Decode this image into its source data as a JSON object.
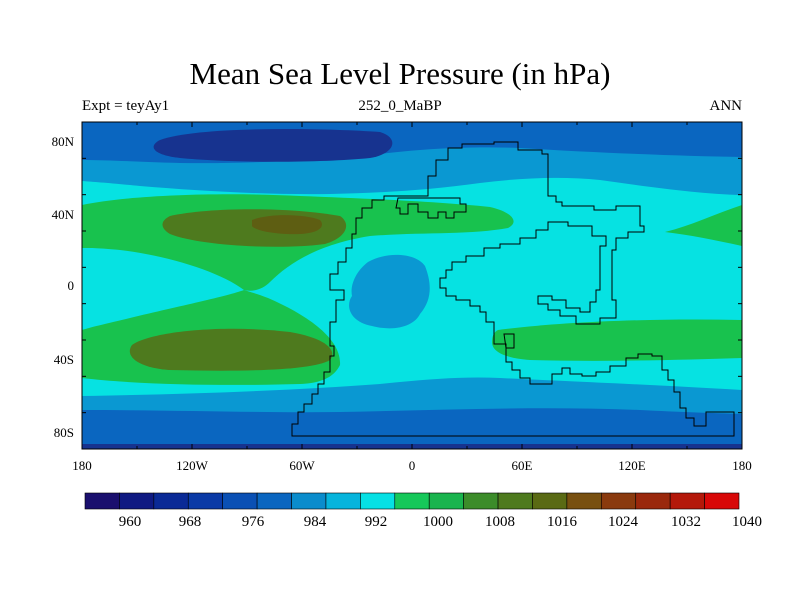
{
  "title": "Mean Sea Level Pressure (in hPa)",
  "subtitle_left": "Expt = teyAy1",
  "subtitle_center": "252_0_MaBP",
  "subtitle_right": "ANN",
  "axes": {
    "lon_labels": [
      "180",
      "120W",
      "60W",
      "0",
      "60E",
      "120E",
      "180"
    ],
    "lat_labels": [
      "80N",
      "40N",
      "0",
      "40S",
      "80S"
    ]
  },
  "colorbar": {
    "labels": [
      "960",
      "968",
      "976",
      "984",
      "992",
      "1000",
      "1008",
      "1016",
      "1024",
      "1032",
      "1040"
    ],
    "colors": [
      "#1a0f6e",
      "#0f1a82",
      "#0a2a96",
      "#0a3aa6",
      "#0a50b4",
      "#0a66c0",
      "#0a8ccc",
      "#06b4dc",
      "#06e0e4",
      "#16c85a",
      "#1ab44e",
      "#3c8c2a",
      "#4e7a1e",
      "#5a6a14",
      "#785010",
      "#8a3a0e",
      "#9a280c",
      "#b4180a",
      "#d80808"
    ]
  },
  "map_colors": {
    "low_deep": "#17338f",
    "low": "#0a66c0",
    "mid_low": "#0a98d2",
    "base": "#06e2e2",
    "green": "#18c24e",
    "olive": "#4e7a1e",
    "high": "#5e5e12"
  }
}
